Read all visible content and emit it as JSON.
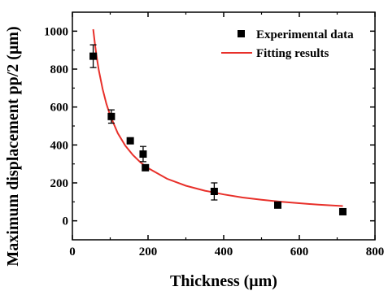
{
  "chart_data": {
    "type": "scatter",
    "xlabel": "Thickness (μm)",
    "ylabel": "Maximum displacement pp/2 (μm)",
    "xlim": [
      0,
      800
    ],
    "ylim": [
      -100,
      1100
    ],
    "xticks": [
      0,
      200,
      400,
      600,
      800
    ],
    "yticks": [
      0,
      200,
      400,
      600,
      800,
      1000
    ],
    "grid": false,
    "legend_position": "top-right",
    "series": [
      {
        "name": "Experimental data",
        "kind": "scatter",
        "marker": "square",
        "color": "#000000",
        "x": [
          55,
          103,
          153,
          187,
          193,
          375,
          543,
          715
        ],
        "y": [
          868,
          550,
          422,
          352,
          280,
          155,
          83,
          48
        ],
        "y_error": [
          60,
          35,
          10,
          40,
          10,
          45,
          15,
          12
        ]
      },
      {
        "name": "Fitting results",
        "kind": "line",
        "color": "#e8302a",
        "x": [
          55,
          60,
          65,
          70,
          80,
          90,
          100,
          120,
          140,
          160,
          180,
          200,
          250,
          300,
          350,
          400,
          450,
          500,
          550,
          600,
          650,
          715
        ],
        "y": [
          1010,
          925,
          855,
          793,
          694,
          617,
          555,
          462,
          396,
          347,
          308,
          278,
          222,
          185,
          159,
          139,
          123,
          111,
          101,
          93,
          85,
          78
        ]
      }
    ]
  }
}
